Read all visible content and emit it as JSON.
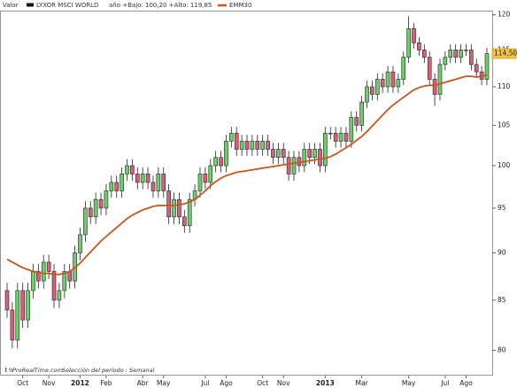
{
  "chart_data": {
    "type": "candlestick",
    "header_label": "Valor",
    "series_name": "LYXOR MSCI WORLD",
    "range_info": "año +Bajo: 100,20 +Alto: 119,85",
    "series_color": "#111111",
    "up_color": "#6ccf6a",
    "down_color": "#d9607a",
    "categories": [
      null,
      null,
      null,
      "Oct",
      null,
      null,
      null,
      null,
      "Nov",
      null,
      null,
      null,
      null,
      null,
      "2012",
      null,
      null,
      null,
      null,
      "Feb",
      null,
      null,
      null,
      null,
      null,
      null,
      "Abr",
      null,
      null,
      null,
      "May",
      null,
      null,
      null,
      null,
      null,
      null,
      null,
      "Jul",
      null,
      null,
      null,
      "Ago",
      null,
      null,
      null,
      null,
      null,
      null,
      "Oct",
      null,
      null,
      null,
      "Nov",
      null,
      null,
      null,
      null,
      null,
      null,
      null,
      "2013",
      null,
      null,
      null,
      null,
      null,
      null,
      "Mar",
      null,
      null,
      null,
      null,
      null,
      null,
      null,
      null,
      "May",
      null,
      null,
      null,
      null,
      null,
      null,
      "Jul",
      null,
      null,
      null,
      "Ago",
      null,
      null,
      null,
      null
    ],
    "open": [
      86,
      84,
      81,
      86,
      83,
      86,
      88,
      87,
      89,
      88,
      85,
      86,
      88,
      87,
      90,
      92,
      95,
      94,
      96,
      95,
      97,
      98,
      97,
      99,
      100,
      99,
      98,
      99,
      98,
      97,
      99,
      97,
      94,
      96,
      94,
      93,
      96,
      97,
      99,
      98,
      100,
      101,
      100,
      103,
      104,
      102,
      103,
      102,
      103,
      102,
      103,
      102,
      101,
      102,
      101,
      99,
      101,
      100,
      102,
      101,
      102,
      100,
      104,
      104,
      103,
      104,
      103,
      106,
      105,
      108,
      110,
      109,
      111,
      110,
      112,
      110,
      111,
      114,
      118,
      116,
      115,
      114,
      111,
      109,
      113,
      114,
      115,
      114,
      115,
      115,
      113,
      112,
      111
    ],
    "high": [
      86.8,
      84.8,
      86.8,
      86.8,
      86.8,
      88.8,
      88.8,
      89.8,
      89.8,
      88.8,
      86.8,
      88.8,
      88.8,
      90.8,
      92.8,
      95.8,
      95.8,
      96.8,
      96.8,
      97.8,
      98.8,
      98.8,
      99.8,
      100.8,
      100.8,
      99.8,
      99.8,
      99.8,
      98.8,
      99.8,
      99.8,
      97.8,
      96.8,
      96.8,
      94.8,
      96.8,
      97.8,
      99.8,
      99.8,
      100.8,
      101.8,
      101.8,
      103.8,
      104.8,
      104.8,
      103.8,
      103.8,
      103.8,
      103.8,
      103.8,
      103.8,
      102.8,
      102.8,
      102.8,
      101.8,
      101.8,
      101.8,
      102.8,
      102.8,
      102.8,
      102.8,
      104.8,
      104.8,
      104.8,
      104.8,
      104.8,
      106.8,
      106.8,
      108.8,
      110.8,
      110.8,
      111.8,
      111.8,
      112.8,
      112.8,
      111.8,
      114.8,
      119.8,
      118.8,
      116.8,
      115.8,
      114.8,
      111.8,
      113.8,
      114.8,
      115.8,
      115.8,
      115.8,
      115.8,
      115.8,
      113.8,
      112.8,
      115.3
    ],
    "low": [
      83.2,
      80.2,
      80.2,
      82.2,
      82.2,
      85.2,
      86.2,
      86.2,
      87.2,
      84.2,
      84.2,
      85.2,
      86.2,
      86.2,
      89.2,
      91.2,
      93.2,
      93.2,
      94.2,
      94.2,
      96.2,
      96.2,
      96.2,
      98.2,
      98.2,
      97.2,
      97.2,
      97.2,
      96.2,
      96.2,
      96.2,
      93.2,
      93.2,
      93.2,
      92.2,
      92.2,
      95.2,
      96.2,
      97.2,
      97.2,
      99.2,
      99.2,
      99.2,
      102.2,
      101.2,
      101.2,
      101.2,
      101.2,
      101.2,
      101.2,
      101.2,
      100.2,
      100.2,
      100.2,
      98.2,
      98.2,
      99.2,
      99.2,
      100.2,
      100.2,
      99.2,
      99.2,
      103.2,
      102.2,
      102.2,
      102.2,
      102.2,
      104.2,
      104.2,
      107.2,
      108.2,
      108.2,
      109.2,
      109.2,
      109.2,
      109.2,
      110.2,
      113.2,
      115.2,
      114.2,
      113.2,
      110.2,
      107.5,
      108.2,
      112.2,
      113.2,
      113.2,
      113.2,
      114.2,
      112.2,
      111.2,
      110.2,
      110.2
    ],
    "close": [
      84,
      81,
      86,
      83,
      86,
      88,
      87,
      89,
      88,
      85,
      86,
      88,
      87,
      90,
      92,
      95,
      94,
      96,
      95,
      97,
      98,
      97,
      99,
      100,
      99,
      98,
      99,
      98,
      97,
      99,
      97,
      94,
      96,
      94,
      93,
      96,
      97,
      99,
      98,
      100,
      101,
      100,
      103,
      104,
      102,
      103,
      102,
      103,
      102,
      103,
      102,
      101,
      102,
      101,
      99,
      101,
      100,
      102,
      101,
      102,
      100,
      104,
      104,
      103,
      104,
      103,
      106,
      105,
      108,
      110,
      109,
      111,
      110,
      112,
      110,
      111,
      114,
      118,
      116,
      115,
      114,
      111,
      109,
      113,
      114,
      115,
      114,
      115,
      115,
      113,
      112,
      111,
      114.5
    ],
    "overlay": {
      "name": "EMM30",
      "color": "#c8561e",
      "values": [
        89.3,
        89.0,
        88.7,
        88.4,
        88.2,
        88.0,
        87.9,
        87.8,
        87.8,
        87.7,
        87.7,
        87.8,
        88.0,
        88.4,
        88.9,
        89.5,
        90.1,
        90.7,
        91.3,
        91.8,
        92.3,
        92.8,
        93.3,
        93.8,
        94.2,
        94.5,
        94.8,
        95.0,
        95.2,
        95.3,
        95.3,
        95.3,
        95.3,
        95.4,
        95.5,
        95.7,
        96.0,
        96.5,
        97.0,
        97.6,
        98.1,
        98.5,
        98.8,
        99.0,
        99.2,
        99.3,
        99.4,
        99.5,
        99.6,
        99.7,
        99.8,
        99.9,
        100.0,
        100.1,
        100.2,
        100.3,
        100.4,
        100.5,
        100.6,
        100.7,
        100.8,
        100.9,
        101.1,
        101.4,
        101.8,
        102.2,
        102.6,
        103.1,
        103.6,
        104.2,
        104.9,
        105.6,
        106.3,
        107.0,
        107.6,
        108.1,
        108.6,
        109.1,
        109.6,
        109.9,
        110.1,
        110.2,
        110.2,
        110.4,
        110.6,
        110.8,
        111.0,
        111.2,
        111.4,
        111.4,
        111.3,
        111.4,
        111.6
      ]
    },
    "ylim": [
      77.6,
      120.6
    ],
    "yticks": [
      80,
      85,
      90,
      95,
      100,
      105,
      110,
      115,
      120
    ],
    "log_scale": true,
    "last_price": {
      "value": 114.5,
      "label": "114,50"
    },
    "last_price_color": "#f5c542",
    "footer_source": "ProRealTime.com",
    "footer_period": "Selección del período : Semanal"
  }
}
